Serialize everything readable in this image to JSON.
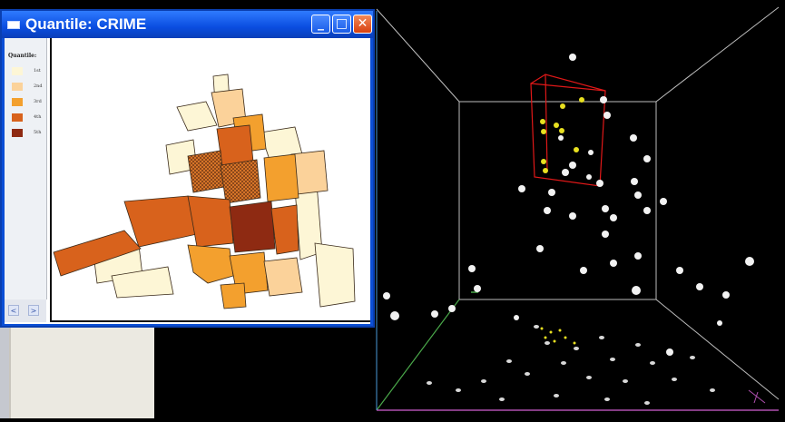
{
  "window": {
    "title": "Quantile: CRIME",
    "min_label": "_",
    "max_label": "□",
    "close_label": "✕"
  },
  "legend": {
    "title": "Quantile:",
    "items": [
      {
        "label": "1st",
        "color": "#fdf6d6"
      },
      {
        "label": "2nd",
        "color": "#fbd29a"
      },
      {
        "label": "3rd",
        "color": "#f3a02e"
      },
      {
        "label": "4th",
        "color": "#d8621c"
      },
      {
        "label": "5th",
        "color": "#8e2a12"
      }
    ]
  },
  "scrollbar": {
    "left_label": "<",
    "right_label": ">"
  },
  "colors": {
    "selection_box": "#e01818",
    "highlight_points": "#e8e020",
    "points": "#f2f2f2"
  }
}
